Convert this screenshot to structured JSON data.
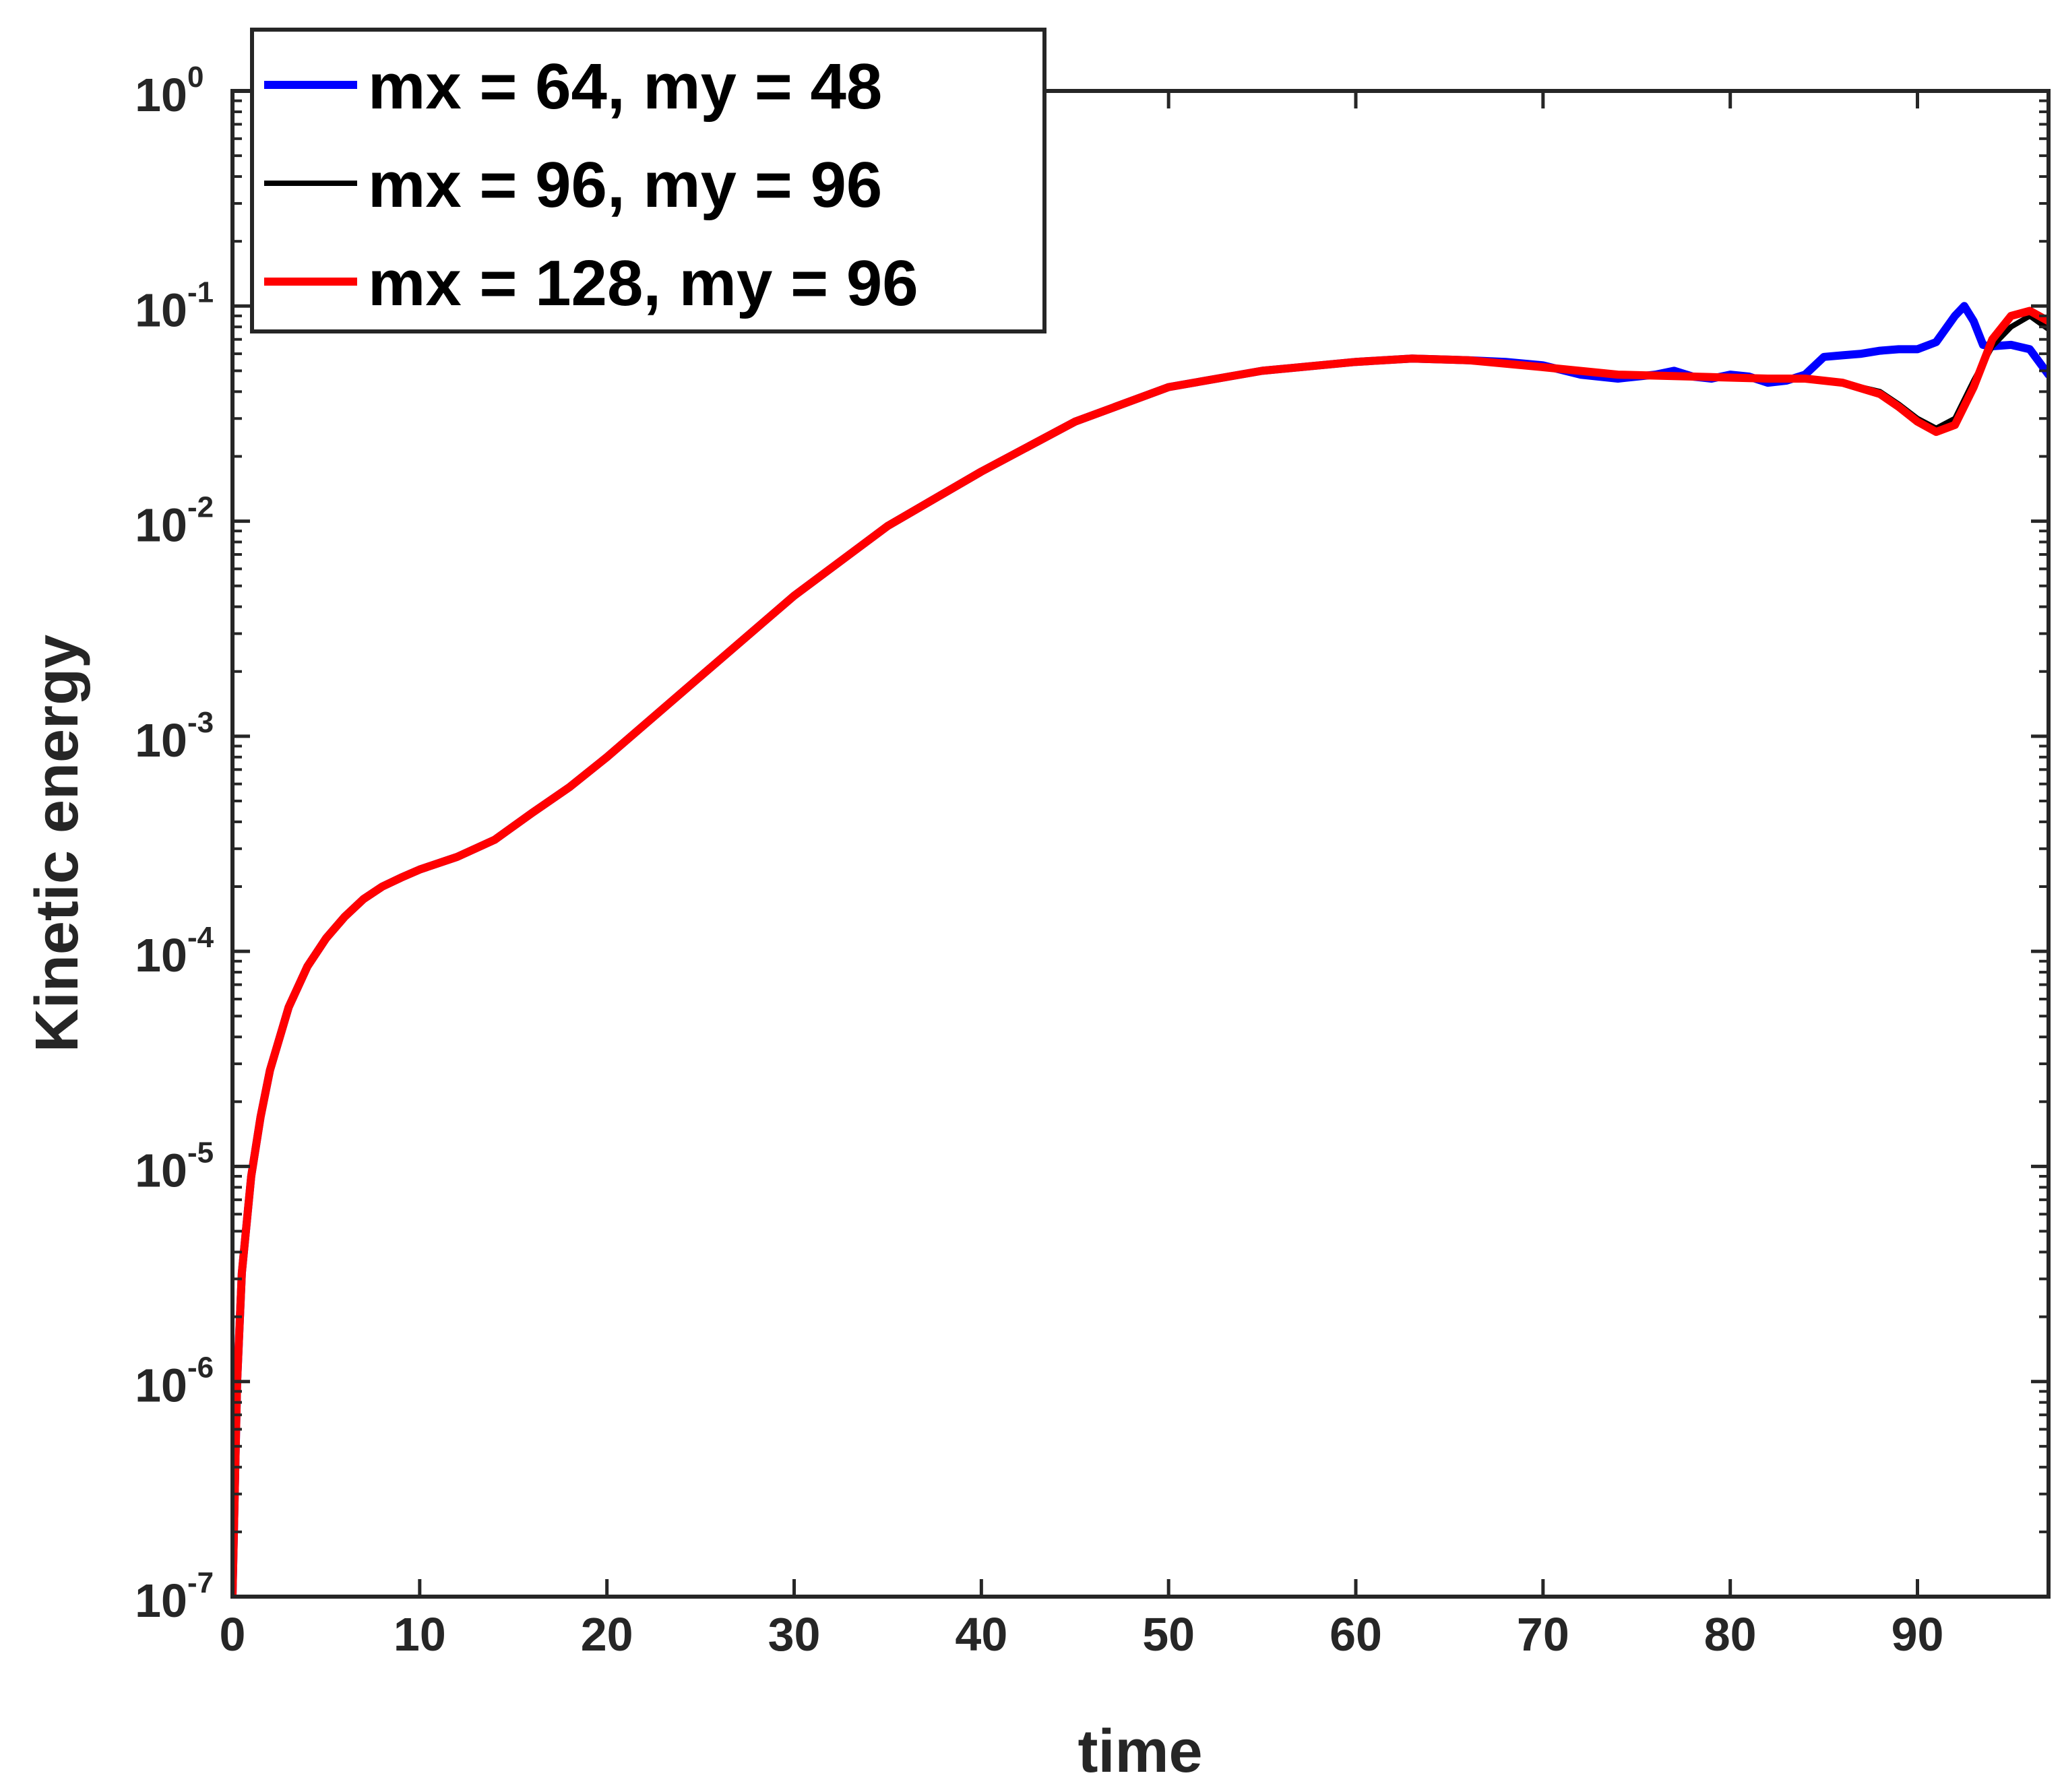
{
  "chart_data": {
    "type": "line",
    "title": "",
    "xlabel": "time",
    "ylabel": "Kinetic energy",
    "xlim": [
      0,
      97
    ],
    "ylim": [
      1e-07,
      1
    ],
    "yscale": "log",
    "grid": false,
    "legend_location": "top-left",
    "x_ticks": [
      0,
      10,
      20,
      30,
      40,
      50,
      60,
      70,
      80,
      90
    ],
    "x_tick_labels": [
      "0",
      "10",
      "20",
      "30",
      "40",
      "50",
      "60",
      "70",
      "80",
      "90"
    ],
    "y_ticks": [
      1e-07,
      1e-06,
      1e-05,
      0.0001,
      0.001,
      0.01,
      0.1,
      1
    ],
    "y_tick_base": "10",
    "y_tick_exponents": [
      "-7",
      "-6",
      "-5",
      "-4",
      "-3",
      "-2",
      "-1",
      "0"
    ],
    "series": [
      {
        "name": "mx = 64, my = 48",
        "color": "#0000ff",
        "x": [
          0,
          0.25,
          0.5,
          1,
          1.5,
          2,
          3,
          4,
          5,
          6,
          7,
          8,
          9,
          10,
          12,
          14,
          16,
          18,
          20,
          25,
          30,
          35,
          40,
          45,
          50,
          55,
          60,
          63,
          66,
          68,
          70,
          72,
          74,
          75,
          76,
          77,
          78,
          79,
          80,
          81,
          82,
          83,
          84,
          85,
          86,
          87,
          88,
          89,
          90,
          91,
          92,
          92.5,
          93,
          93.5,
          94,
          95,
          96,
          97
        ],
        "y": [
          1e-07,
          1e-06,
          3.2e-06,
          9e-06,
          1.7e-05,
          2.8e-05,
          5.5e-05,
          8.5e-05,
          0.000115,
          0.000145,
          0.000175,
          0.0002,
          0.00022,
          0.00024,
          0.000275,
          0.00033,
          0.00044,
          0.00058,
          0.0008,
          0.0019,
          0.0045,
          0.0095,
          0.017,
          0.029,
          0.042,
          0.05,
          0.055,
          0.057,
          0.056,
          0.055,
          0.053,
          0.048,
          0.046,
          0.047,
          0.048,
          0.05,
          0.047,
          0.046,
          0.048,
          0.047,
          0.044,
          0.045,
          0.048,
          0.058,
          0.059,
          0.06,
          0.062,
          0.063,
          0.063,
          0.068,
          0.09,
          0.1,
          0.085,
          0.066,
          0.065,
          0.066,
          0.063,
          0.048
        ]
      },
      {
        "name": "mx = 96, my = 96",
        "color": "#000000",
        "x": [
          0,
          0.25,
          0.5,
          1,
          1.5,
          2,
          3,
          4,
          5,
          6,
          7,
          8,
          9,
          10,
          12,
          14,
          16,
          18,
          20,
          25,
          30,
          35,
          40,
          45,
          50,
          55,
          60,
          63,
          66,
          70,
          74,
          78,
          82,
          84,
          86,
          88,
          89,
          90,
          91,
          92,
          93,
          94,
          95,
          96,
          97
        ],
        "y": [
          1e-07,
          1e-06,
          3.2e-06,
          9e-06,
          1.7e-05,
          2.8e-05,
          5.5e-05,
          8.5e-05,
          0.000115,
          0.000145,
          0.000175,
          0.0002,
          0.00022,
          0.00024,
          0.000275,
          0.00033,
          0.00044,
          0.00058,
          0.0008,
          0.0019,
          0.0045,
          0.0095,
          0.017,
          0.029,
          0.042,
          0.05,
          0.055,
          0.057,
          0.056,
          0.052,
          0.048,
          0.047,
          0.046,
          0.046,
          0.044,
          0.04,
          0.035,
          0.03,
          0.027,
          0.03,
          0.045,
          0.065,
          0.08,
          0.09,
          0.078
        ]
      },
      {
        "name": "mx = 128, my = 96",
        "color": "#ff0000",
        "x": [
          0,
          0.25,
          0.5,
          1,
          1.5,
          2,
          3,
          4,
          5,
          6,
          7,
          8,
          9,
          10,
          12,
          14,
          16,
          18,
          20,
          25,
          30,
          35,
          40,
          45,
          50,
          55,
          60,
          63,
          66,
          70,
          74,
          78,
          82,
          84,
          86,
          88,
          89,
          90,
          91,
          92,
          93,
          94,
          95,
          96,
          97
        ],
        "y": [
          1e-07,
          1e-06,
          3.2e-06,
          9e-06,
          1.7e-05,
          2.8e-05,
          5.5e-05,
          8.5e-05,
          0.000115,
          0.000145,
          0.000175,
          0.0002,
          0.00022,
          0.00024,
          0.000275,
          0.00033,
          0.00044,
          0.00058,
          0.0008,
          0.0019,
          0.0045,
          0.0095,
          0.017,
          0.029,
          0.042,
          0.05,
          0.055,
          0.057,
          0.056,
          0.052,
          0.048,
          0.047,
          0.046,
          0.046,
          0.044,
          0.039,
          0.034,
          0.029,
          0.026,
          0.028,
          0.042,
          0.07,
          0.09,
          0.095,
          0.085
        ]
      }
    ]
  }
}
